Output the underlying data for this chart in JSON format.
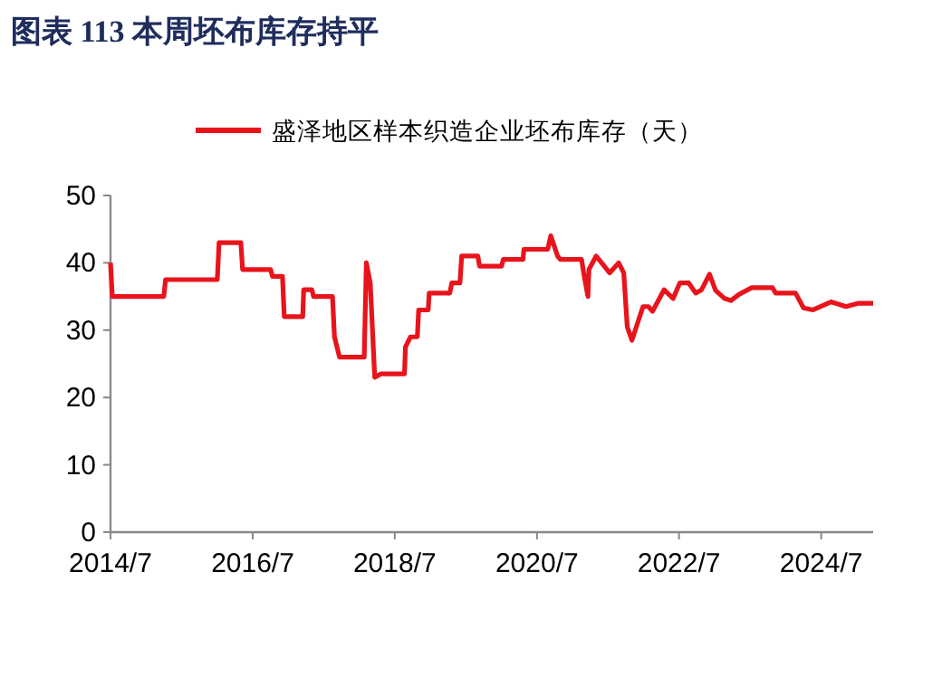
{
  "chart_data": {
    "type": "line",
    "title": "图表  113  本周坯布库存持平",
    "legend": "top",
    "grid": false,
    "line_style": "solid",
    "xlim": [
      "2014-07-01",
      "2025-03-25"
    ],
    "xticks": [
      {
        "value": "2014-07",
        "label": "2014/7"
      },
      {
        "value": "2016-07",
        "label": "2016/7"
      },
      {
        "value": "2018-07",
        "label": "2018/7"
      },
      {
        "value": "2020-07",
        "label": "2020/7"
      },
      {
        "value": "2022-07",
        "label": "2022/7"
      },
      {
        "value": "2024-07",
        "label": "2024/7"
      }
    ],
    "ylim": [
      0,
      50
    ],
    "yticks": [
      0,
      10,
      20,
      30,
      40,
      50
    ],
    "series": [
      {
        "name": "盛泽地区样本织造企业坯布库存（天）",
        "color": "#e8141c",
        "x": [
          "2014-07-01",
          "2014-07-10",
          "2015-04-01",
          "2015-04-10",
          "2016-01-01",
          "2016-01-10",
          "2016-05-01",
          "2016-05-10",
          "2016-10-01",
          "2016-10-10",
          "2016-12-01",
          "2016-12-10",
          "2017-03-15",
          "2017-03-20",
          "2017-05-01",
          "2017-05-10",
          "2017-08-15",
          "2017-08-25",
          "2017-09-20",
          "2018-01-25",
          "2018-02-05",
          "2018-02-25",
          "2018-03-20",
          "2018-04-20",
          "2018-08-20",
          "2018-08-25",
          "2018-09-20",
          "2018-10-25",
          "2018-11-01",
          "2018-12-20",
          "2018-12-25",
          "2019-04-10",
          "2019-04-20",
          "2019-06-01",
          "2019-06-10",
          "2019-09-01",
          "2019-09-10",
          "2020-01-01",
          "2020-01-10",
          "2020-04-20",
          "2020-04-25",
          "2020-08-25",
          "2020-09-10",
          "2020-10-15",
          "2020-10-30",
          "2021-02-15",
          "2021-03-01",
          "2021-03-20",
          "2021-03-25",
          "2021-05-01",
          "2021-07-10",
          "2021-08-25",
          "2021-09-20",
          "2021-10-08",
          "2021-11-01",
          "2021-12-28",
          "2022-01-25",
          "2022-02-15",
          "2022-04-15",
          "2022-06-01",
          "2022-07-05",
          "2022-08-20",
          "2022-09-25",
          "2022-10-25",
          "2022-12-05",
          "2023-01-05",
          "2023-02-20",
          "2023-03-25",
          "2023-05-05",
          "2023-07-10",
          "2023-10-25",
          "2023-11-10",
          "2024-02-20",
          "2024-04-01",
          "2024-05-20",
          "2024-08-20",
          "2024-11-05",
          "2025-01-10",
          "2025-03-25"
        ],
        "values": [
          40,
          35,
          35,
          37.5,
          37.5,
          43,
          43,
          39,
          39,
          38,
          38,
          32,
          32,
          36,
          36,
          35,
          35,
          29,
          26,
          26,
          40,
          37,
          23,
          23.5,
          23.5,
          27.5,
          29,
          29,
          33,
          33,
          35.5,
          35.5,
          37,
          37,
          41,
          41,
          39.5,
          39.5,
          40.5,
          40.5,
          42,
          42,
          44,
          41,
          40.5,
          40.5,
          38,
          35,
          39,
          41,
          38.5,
          40,
          38.5,
          30.5,
          28.5,
          33.5,
          33.5,
          32.8,
          36,
          34.7,
          37,
          37,
          35.5,
          36,
          38.3,
          35.9,
          34.7,
          34.4,
          35.3,
          36.3,
          36.3,
          35.5,
          35.5,
          33.3,
          33,
          34.2,
          33.5,
          34,
          34
        ]
      }
    ]
  }
}
